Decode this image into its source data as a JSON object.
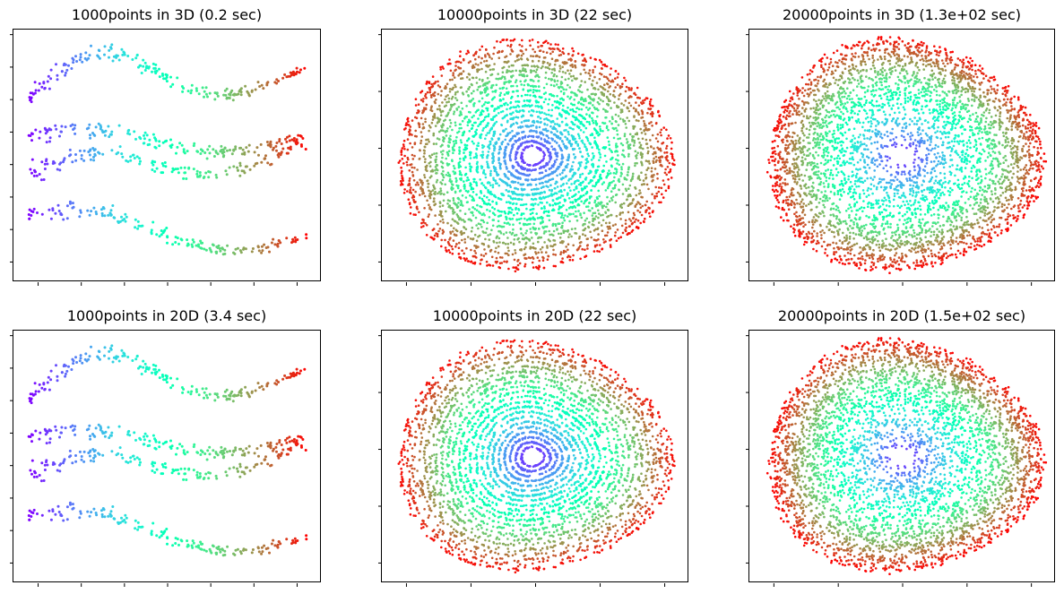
{
  "chart_data": [
    {
      "type": "scatter",
      "title": "1000points in 3D (0.2 sec)",
      "pattern": "swiss-roll-unrolled",
      "n_points": 1000,
      "colormap": "rainbow",
      "xlabel": "",
      "ylabel": "",
      "x_ticks": 7,
      "y_ticks": 8,
      "tick_labels_shown": false,
      "grid": false
    },
    {
      "type": "scatter",
      "title": "10000points in 3D (22 sec)",
      "pattern": "rings",
      "n_points": 10000,
      "colormap": "rainbow",
      "xlabel": "",
      "ylabel": "",
      "x_ticks": 5,
      "y_ticks": 5,
      "tick_labels_shown": false,
      "grid": false
    },
    {
      "type": "scatter",
      "title": "20000points in 3D (1.3e+02 sec)",
      "pattern": "disk",
      "n_points": 20000,
      "colormap": "rainbow",
      "xlabel": "",
      "ylabel": "",
      "x_ticks": 5,
      "y_ticks": 5,
      "tick_labels_shown": false,
      "grid": false
    },
    {
      "type": "scatter",
      "title": "1000points in 20D (3.4 sec)",
      "pattern": "swiss-roll-unrolled",
      "n_points": 1000,
      "colormap": "rainbow",
      "xlabel": "",
      "ylabel": "",
      "x_ticks": 7,
      "y_ticks": 8,
      "tick_labels_shown": false,
      "grid": false
    },
    {
      "type": "scatter",
      "title": "10000points in 20D (22 sec)",
      "pattern": "rings",
      "n_points": 10000,
      "colormap": "rainbow",
      "xlabel": "",
      "ylabel": "",
      "x_ticks": 5,
      "y_ticks": 5,
      "tick_labels_shown": false,
      "grid": false
    },
    {
      "type": "scatter",
      "title": "20000points in 20D (1.5e+02 sec)",
      "pattern": "disk",
      "n_points": 20000,
      "colormap": "rainbow",
      "xlabel": "",
      "ylabel": "",
      "x_ticks": 5,
      "y_ticks": 5,
      "tick_labels_shown": false,
      "grid": false
    }
  ]
}
